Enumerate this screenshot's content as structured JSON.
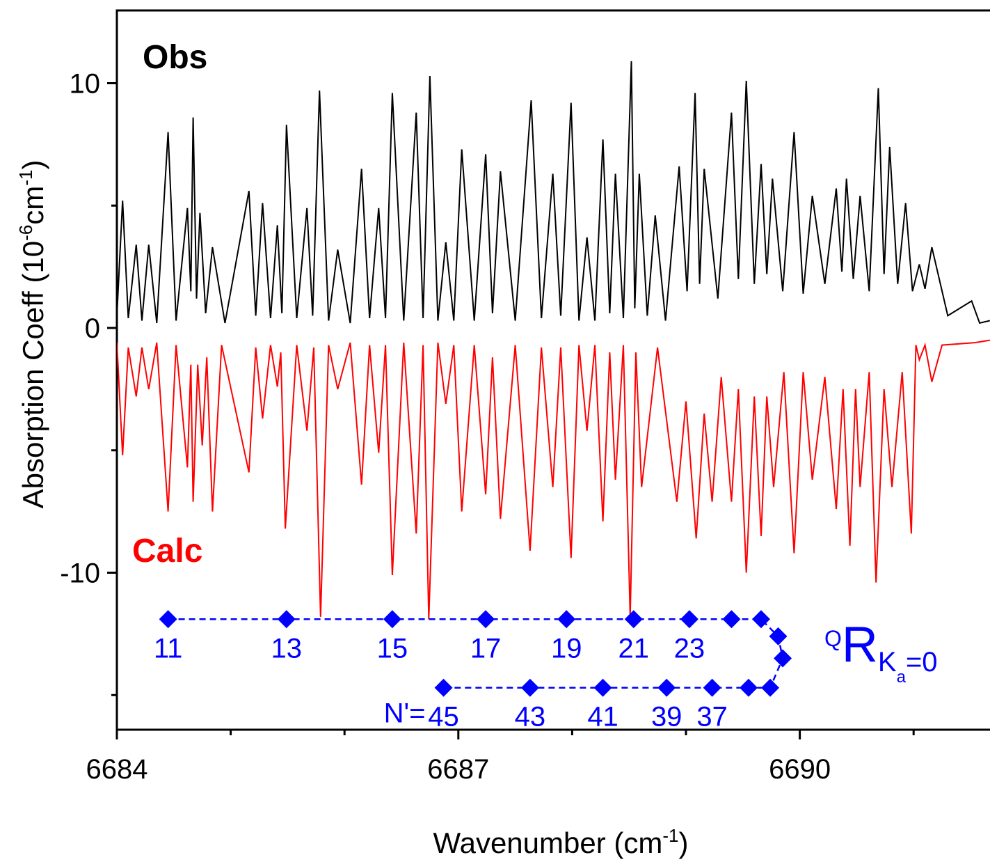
{
  "chart_data": {
    "type": "line",
    "x_label": {
      "text": "Wavenumber (cm",
      "sup": "-1",
      "end": ")"
    },
    "y_label": {
      "text": "Absorption Coeff (10",
      "sup1": "-6",
      "mid": "cm",
      "sup2": "-1",
      "end": ")"
    },
    "xlim": [
      6684,
      6691.7
    ],
    "ylim": [
      -16.4,
      13
    ],
    "xticks": [
      6684,
      6687,
      6690
    ],
    "xticks_minor": [
      6685,
      6686,
      6688,
      6689,
      6691
    ],
    "yticks": [
      -10,
      0,
      10
    ],
    "yticks_minor": [
      -15,
      -5,
      5
    ],
    "series": [
      {
        "name": "Obs",
        "color": "#000000",
        "x": [
          6684.0,
          6684.05,
          6684.1,
          6684.17,
          6684.22,
          6684.28,
          6684.35,
          6684.45,
          6684.52,
          6684.62,
          6684.65,
          6684.67,
          6684.7,
          6684.73,
          6684.78,
          6684.84,
          6684.95,
          6685.16,
          6685.22,
          6685.28,
          6685.35,
          6685.41,
          6685.45,
          6685.49,
          6685.58,
          6685.67,
          6685.72,
          6685.78,
          6685.86,
          6685.94,
          6686.05,
          6686.15,
          6686.22,
          6686.3,
          6686.36,
          6686.42,
          6686.52,
          6686.63,
          6686.69,
          6686.75,
          6686.82,
          6686.89,
          6686.96,
          6687.03,
          6687.14,
          6687.24,
          6687.3,
          6687.37,
          6687.5,
          6687.64,
          6687.73,
          6687.83,
          6687.9,
          6687.99,
          6688.06,
          6688.13,
          6688.2,
          6688.27,
          6688.33,
          6688.38,
          6688.45,
          6688.52,
          6688.55,
          6688.59,
          6688.66,
          6688.73,
          6688.82,
          6688.94,
          6689.01,
          6689.08,
          6689.12,
          6689.16,
          6689.28,
          6689.4,
          6689.46,
          6689.53,
          6689.6,
          6689.66,
          6689.71,
          6689.76,
          6689.85,
          6689.95,
          6690.03,
          6690.11,
          6690.22,
          6690.32,
          6690.37,
          6690.41,
          6690.47,
          6690.53,
          6690.61,
          6690.69,
          6690.74,
          6690.79,
          6690.86,
          6690.93,
          6690.99,
          6691.05,
          6691.1,
          6691.16,
          6691.3,
          6691.51,
          6691.58,
          6691.67
        ],
        "values": [
          0.5,
          5.2,
          0.4,
          3.4,
          0.3,
          3.4,
          0.2,
          8.0,
          0.3,
          4.9,
          1.5,
          8.6,
          1.2,
          4.7,
          0.6,
          3.3,
          0.2,
          5.6,
          0.5,
          5.1,
          0.4,
          4.2,
          0.6,
          8.3,
          0.4,
          4.9,
          0.5,
          9.7,
          0.3,
          3.2,
          0.2,
          6.5,
          0.4,
          4.9,
          0.4,
          9.6,
          0.3,
          8.8,
          0.4,
          10.3,
          0.3,
          3.5,
          0.3,
          7.3,
          0.3,
          7.1,
          0.6,
          6.4,
          0.3,
          9.3,
          0.4,
          6.3,
          0.5,
          9.2,
          0.3,
          3.7,
          0.3,
          7.7,
          0.6,
          6.3,
          0.4,
          10.9,
          0.8,
          6.3,
          0.5,
          4.6,
          0.3,
          6.6,
          1.5,
          9.6,
          1.8,
          6.5,
          1.2,
          8.8,
          2.0,
          10.1,
          1.8,
          6.7,
          2.2,
          6.1,
          1.5,
          8.0,
          1.4,
          5.4,
          1.8,
          5.7,
          2.3,
          6.1,
          2.0,
          5.4,
          1.5,
          9.8,
          2.2,
          7.4,
          1.8,
          5.1,
          1.5,
          2.6,
          1.6,
          3.3,
          0.5,
          1.1,
          0.2,
          0.3
        ]
      },
      {
        "name": "Calc",
        "color": "#ff0000",
        "x": [
          6684.0,
          6684.05,
          6684.1,
          6684.17,
          6684.22,
          6684.28,
          6684.35,
          6684.45,
          6684.52,
          6684.62,
          6684.65,
          6684.67,
          6684.71,
          6684.75,
          6684.79,
          6684.84,
          6684.92,
          6685.16,
          6685.22,
          6685.28,
          6685.35,
          6685.41,
          6685.44,
          6685.48,
          6685.58,
          6685.67,
          6685.73,
          6685.79,
          6685.86,
          6685.94,
          6686.05,
          6686.15,
          6686.22,
          6686.3,
          6686.36,
          6686.42,
          6686.52,
          6686.63,
          6686.69,
          6686.74,
          6686.82,
          6686.89,
          6686.96,
          6687.03,
          6687.14,
          6687.24,
          6687.3,
          6687.37,
          6687.5,
          6687.63,
          6687.73,
          6687.83,
          6687.9,
          6687.99,
          6688.06,
          6688.13,
          6688.2,
          6688.27,
          6688.33,
          6688.38,
          6688.45,
          6688.51,
          6688.56,
          6688.61,
          6688.75,
          6688.92,
          6689.0,
          6689.09,
          6689.16,
          6689.23,
          6689.31,
          6689.4,
          6689.46,
          6689.53,
          6689.6,
          6689.66,
          6689.71,
          6689.77,
          6689.86,
          6689.95,
          6690.03,
          6690.11,
          6690.22,
          6690.32,
          6690.38,
          6690.44,
          6690.49,
          6690.53,
          6690.61,
          6690.67,
          6690.74,
          6690.81,
          6690.9,
          6690.98,
          6691.02,
          6691.05,
          6691.1,
          6691.16,
          6691.25,
          6691.54,
          6691.67
        ],
        "values": [
          -0.6,
          -5.2,
          -0.8,
          -2.8,
          -0.8,
          -2.5,
          -0.6,
          -7.5,
          -0.7,
          -5.7,
          -1.5,
          -7.1,
          -1.5,
          -4.8,
          -1.2,
          -7.5,
          -0.7,
          -5.9,
          -0.8,
          -3.7,
          -0.7,
          -2.4,
          -1.0,
          -8.2,
          -0.7,
          -4.2,
          -0.8,
          -11.8,
          -0.7,
          -2.5,
          -0.6,
          -6.4,
          -0.7,
          -5.1,
          -0.7,
          -10.1,
          -0.6,
          -8.4,
          -0.7,
          -11.9,
          -0.6,
          -3.1,
          -0.7,
          -7.5,
          -0.7,
          -6.8,
          -1.2,
          -7.8,
          -0.7,
          -9.1,
          -0.8,
          -6.5,
          -0.8,
          -9.4,
          -0.7,
          -4.2,
          -0.7,
          -7.9,
          -1.0,
          -6.2,
          -0.7,
          -11.8,
          -1.0,
          -6.5,
          -0.8,
          -7.1,
          -3.0,
          -8.6,
          -3.5,
          -7.1,
          -2.0,
          -7.1,
          -2.5,
          -10.0,
          -2.8,
          -8.5,
          -2.8,
          -6.5,
          -1.8,
          -9.2,
          -1.8,
          -6.2,
          -2.0,
          -7.4,
          -2.5,
          -8.9,
          -2.5,
          -6.5,
          -1.8,
          -10.4,
          -2.5,
          -6.5,
          -1.8,
          -8.4,
          -0.7,
          -1.3,
          -0.7,
          -2.2,
          -0.7,
          -0.6,
          -0.5
        ]
      },
      {
        "label_prefix": "N'=",
        "color": "#0000ff",
        "marker": "diamond",
        "linestyle": "dashed",
        "x": [
          6684.45,
          6685.49,
          6686.42,
          6687.24,
          6687.95,
          6688.54,
          6689.03,
          6689.4,
          6689.66,
          6689.81,
          6689.85,
          6689.74,
          6689.55,
          6689.23,
          6688.83,
          6688.27,
          6687.63,
          6686.87
        ],
        "values": [
          -11.9,
          -11.9,
          -11.9,
          -11.9,
          -11.9,
          -11.9,
          -11.9,
          -11.9,
          -11.9,
          -12.6,
          -13.5,
          -14.7,
          -14.7,
          -14.7,
          -14.7,
          -14.7,
          -14.7,
          -14.7
        ],
        "point_labels": [
          "11",
          "13",
          "15",
          "17",
          "19",
          "21",
          "23",
          null,
          null,
          null,
          null,
          null,
          null,
          "37",
          "39",
          "41",
          "43",
          "45"
        ]
      }
    ],
    "annotation": {
      "superscript": "Q",
      "main": "R",
      "subscript": "K",
      "subsubscript": "a",
      "suffix": "=0",
      "color": "#0000ff"
    }
  }
}
